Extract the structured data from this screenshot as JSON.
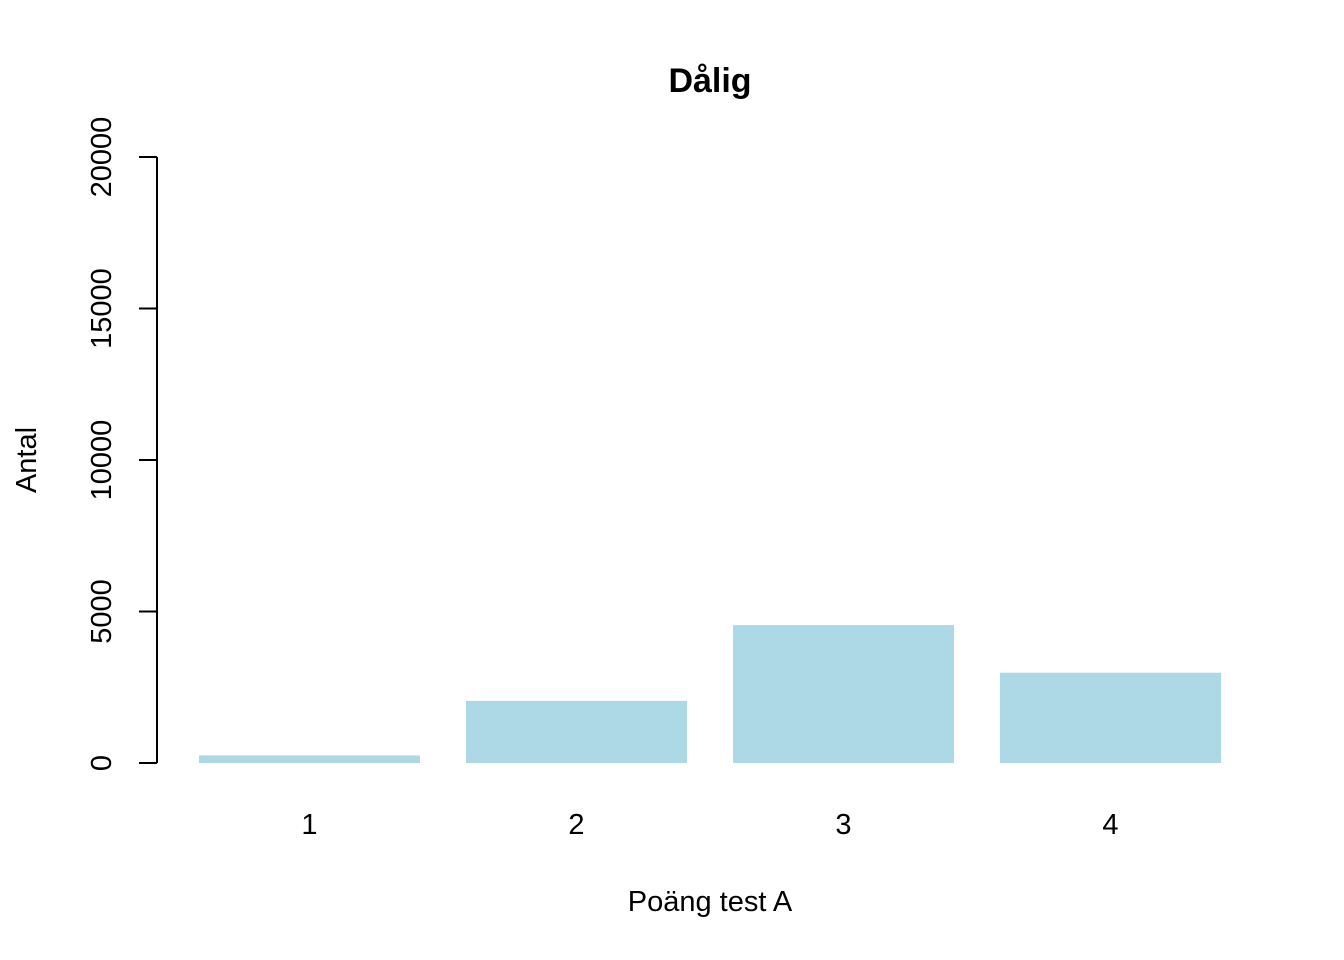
{
  "chart_data": {
    "type": "bar",
    "title": "Dålig",
    "xlabel": "Poäng test A",
    "ylabel": "Antal",
    "categories": [
      "1",
      "2",
      "3",
      "4"
    ],
    "values": [
      250,
      2050,
      4550,
      2980
    ],
    "ylim": [
      0,
      20000
    ],
    "yticks": [
      0,
      5000,
      10000,
      15000,
      20000
    ],
    "ytick_labels": [
      "0",
      "5000",
      "10000",
      "15000",
      "20000"
    ],
    "bar_color": "#add8e6",
    "grid": false,
    "legend": "none"
  }
}
